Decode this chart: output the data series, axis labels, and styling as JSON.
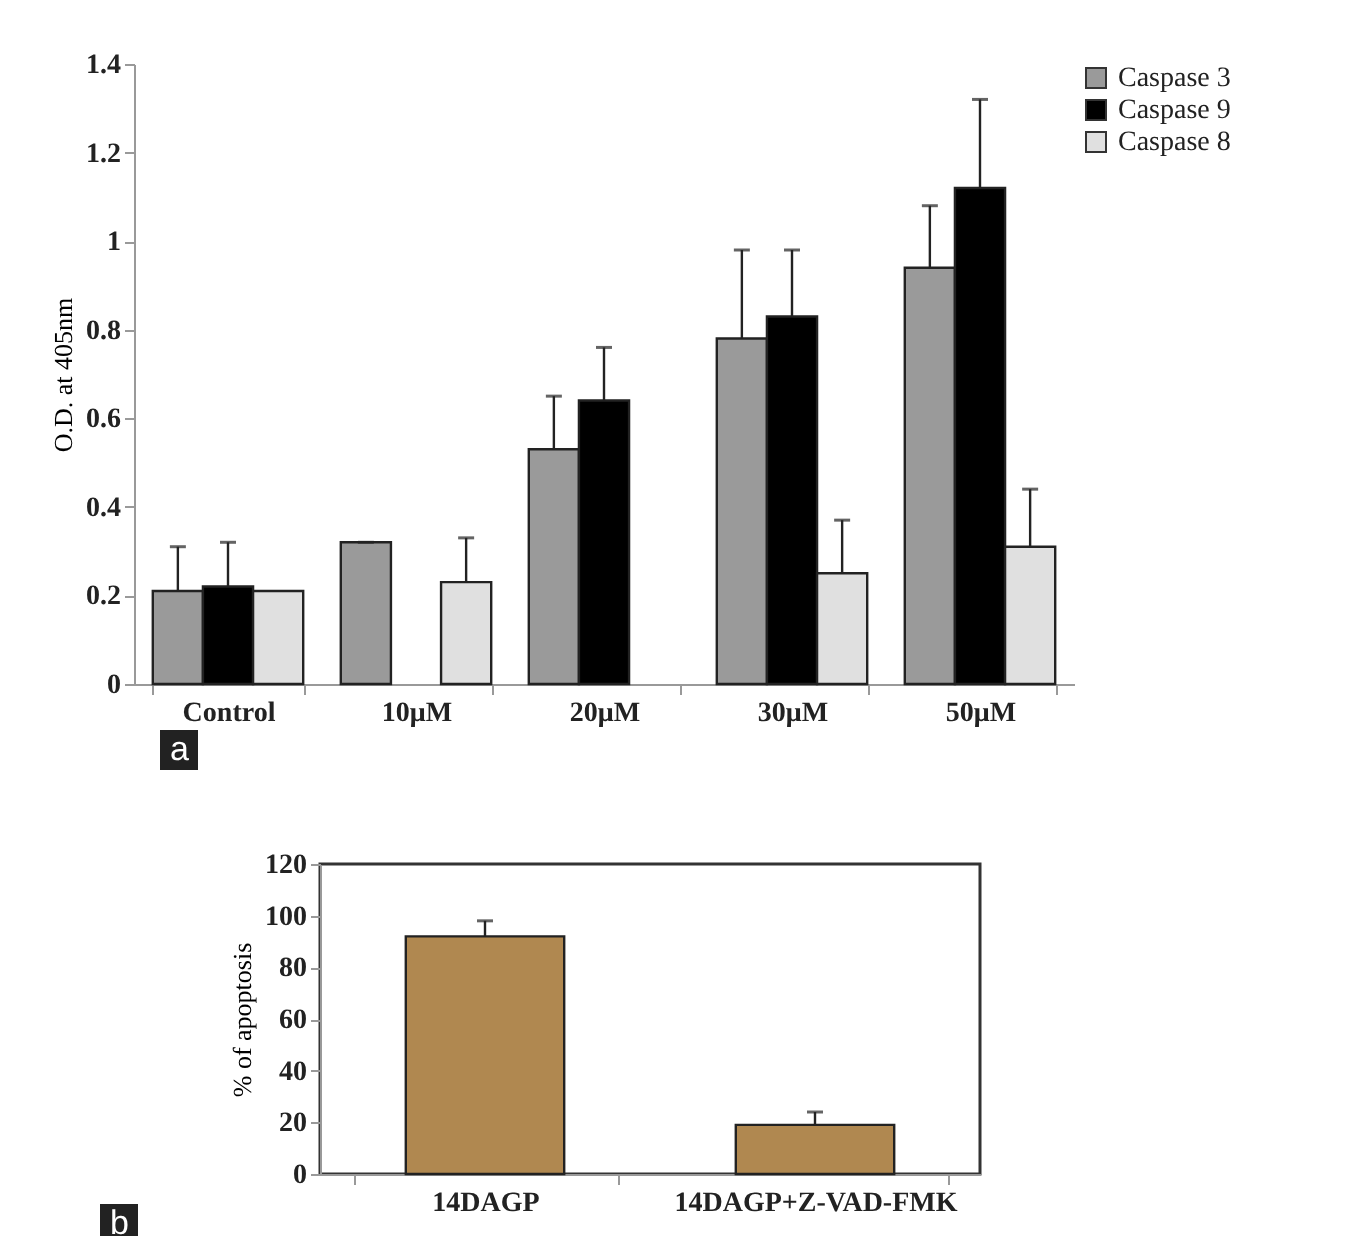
{
  "chart_data": [
    {
      "type": "bar",
      "ylabel": "O.D. at 405nm",
      "categories": [
        "Control",
        "10μM",
        "20μM",
        "30μM",
        "50μM"
      ],
      "series": [
        {
          "name": "Caspase 3",
          "color": "#9a9a9a",
          "values": [
            0.21,
            0.32,
            0.53,
            0.78,
            0.94
          ],
          "errors": [
            [
              0.21,
              0.31
            ],
            [
              0.32,
              0.32
            ],
            [
              0.53,
              0.65
            ],
            [
              0.78,
              0.98
            ],
            [
              0.94,
              1.08
            ]
          ]
        },
        {
          "name": "Caspase 9",
          "color": "#000000",
          "values": [
            0.22,
            null,
            0.64,
            0.83,
            1.12
          ],
          "errors": [
            [
              0.22,
              0.32
            ],
            null,
            [
              0.64,
              0.76
            ],
            [
              0.83,
              0.98
            ],
            [
              1.12,
              1.32
            ]
          ]
        },
        {
          "name": "Caspase 8",
          "color": "#e0e0e0",
          "values": [
            0.21,
            0.23,
            null,
            0.25,
            0.31
          ],
          "errors": [
            null,
            [
              0.23,
              0.33
            ],
            null,
            [
              0.25,
              0.37
            ],
            [
              0.31,
              0.44
            ]
          ]
        }
      ],
      "ylim": [
        0,
        1.4
      ],
      "yticks": [
        0,
        0.2,
        0.4,
        0.6,
        0.8,
        1,
        1.2,
        1.4
      ],
      "grid": false,
      "legend": "right",
      "annotations": [
        "a"
      ]
    },
    {
      "type": "bar",
      "ylabel": "% of apoptosis",
      "categories": [
        "14DAGP",
        "14DAGP+Z-VAD-FMK"
      ],
      "series": [
        {
          "color": "#b08850",
          "values": [
            92,
            19
          ],
          "errors": [
            [
              92,
              98
            ],
            [
              19,
              24
            ]
          ]
        }
      ],
      "ylim": [
        0,
        120
      ],
      "yticks": [
        0,
        20,
        40,
        60,
        80,
        100,
        120
      ],
      "grid": false,
      "legend": false,
      "annotations": [
        "b"
      ]
    }
  ]
}
